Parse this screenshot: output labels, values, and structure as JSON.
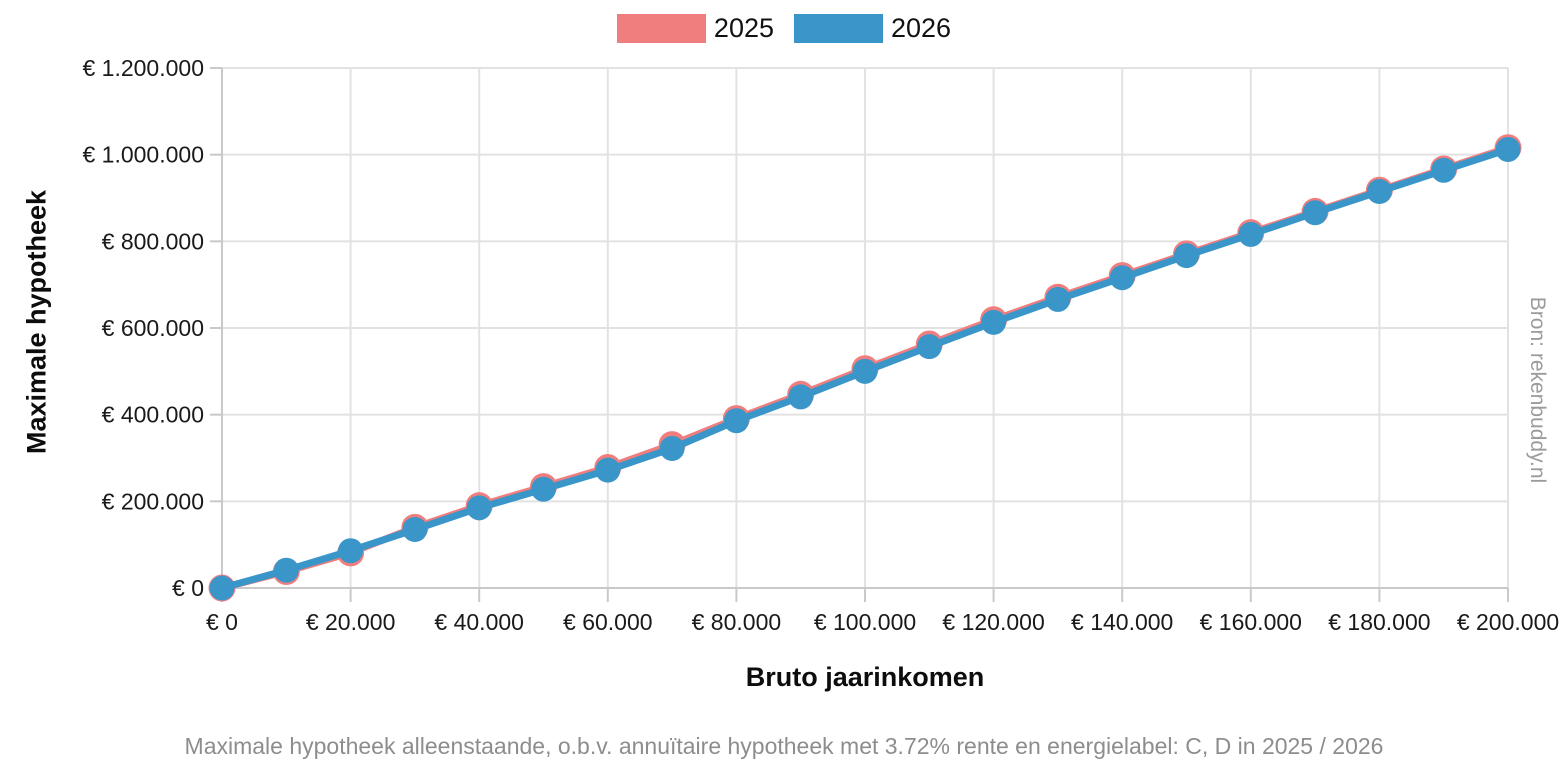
{
  "chart_data": {
    "type": "line",
    "title": "",
    "xlabel": "Bruto jaarinkomen",
    "ylabel": "Maximale hypotheek",
    "caption": "Maximale hypotheek alleenstaande, o.b.v. annuïtaire hypotheek met 3.72% rente en energielabel: C, D in 2025 / 2026",
    "source": "Bron: rekenbuddy.nl",
    "legend_position": "top",
    "grid": true,
    "marker": "circle",
    "xlim": [
      0,
      200000
    ],
    "ylim": [
      0,
      1200000
    ],
    "x": [
      0,
      10000,
      20000,
      30000,
      40000,
      50000,
      60000,
      70000,
      80000,
      90000,
      100000,
      110000,
      120000,
      130000,
      140000,
      150000,
      160000,
      170000,
      180000,
      190000,
      200000
    ],
    "series": [
      {
        "name": "2025",
        "color": "#F17E7E",
        "values": [
          0,
          38000,
          81000,
          140000,
          190000,
          234000,
          278000,
          331000,
          391000,
          447000,
          506000,
          563000,
          619000,
          671000,
          721000,
          771000,
          820000,
          869000,
          918000,
          967000,
          1016000
        ]
      },
      {
        "name": "2026",
        "color": "#3A96C8",
        "values": [
          0,
          41000,
          86000,
          135000,
          185000,
          228000,
          272000,
          322000,
          386000,
          441000,
          500000,
          557000,
          613000,
          666000,
          716000,
          767000,
          816000,
          866000,
          915000,
          964000,
          1012000
        ]
      }
    ],
    "x_ticks": {
      "values": [
        0,
        20000,
        40000,
        60000,
        80000,
        100000,
        120000,
        140000,
        160000,
        180000,
        200000
      ],
      "labels": [
        "€ 0",
        "€ 20.000",
        "€ 40.000",
        "€ 60.000",
        "€ 80.000",
        "€ 100.000",
        "€ 120.000",
        "€ 140.000",
        "€ 160.000",
        "€ 180.000",
        "€ 200.000"
      ]
    },
    "y_ticks": {
      "values": [
        0,
        200000,
        400000,
        600000,
        800000,
        1000000,
        1200000
      ],
      "labels": [
        "€ 0",
        "€ 200.000",
        "€ 400.000",
        "€ 600.000",
        "€ 800.000",
        "€ 1.000.000",
        "€ 1.200.000"
      ]
    },
    "colors": {
      "background": "#FFFFFF",
      "grid": "#E2E2E2",
      "axis": "#C9C9C9",
      "tick_text": "#1A1A1A",
      "title_text": "#0D0D0D",
      "caption_text": "#8D8D8D",
      "source_text": "#9B9B9B"
    }
  },
  "legend": {
    "items": [
      {
        "label": "2025"
      },
      {
        "label": "2026"
      }
    ]
  }
}
